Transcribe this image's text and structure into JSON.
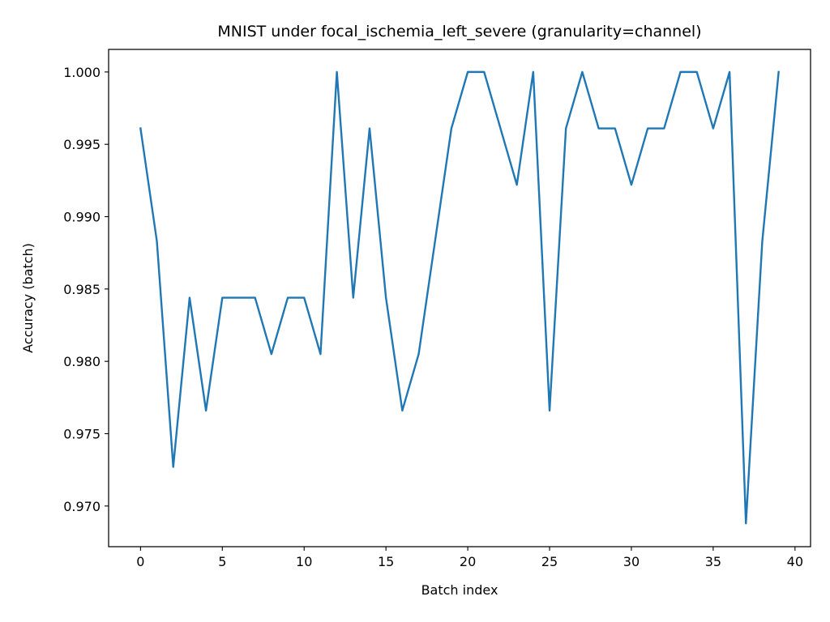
{
  "chart_data": {
    "type": "line",
    "title": "MNIST under focal_ischemia_left_severe (granularity=channel)",
    "xlabel": "Batch index",
    "ylabel": "Accuracy (batch)",
    "xlim": [
      -1.95,
      40.95
    ],
    "ylim": [
      0.96719,
      1.00156
    ],
    "x_ticks": [
      0,
      5,
      10,
      15,
      20,
      25,
      30,
      35,
      40
    ],
    "x_tick_labels": [
      "0",
      "5",
      "10",
      "15",
      "20",
      "25",
      "30",
      "35",
      "40"
    ],
    "y_ticks": [
      0.97,
      0.975,
      0.98,
      0.985,
      0.99,
      0.995,
      1.0
    ],
    "y_tick_labels": [
      "0.970",
      "0.975",
      "0.980",
      "0.985",
      "0.990",
      "0.995",
      "1.000"
    ],
    "grid": false,
    "series": [
      {
        "color": "#1f77b4",
        "x": [
          0,
          1,
          2,
          3,
          4,
          5,
          6,
          7,
          8,
          9,
          10,
          11,
          12,
          13,
          14,
          15,
          16,
          17,
          18,
          19,
          20,
          21,
          22,
          23,
          24,
          25,
          26,
          27,
          28,
          29,
          30,
          31,
          32,
          33,
          34,
          35,
          36,
          37,
          38,
          39
        ],
        "values": [
          0.9961,
          0.9883,
          0.9727,
          0.9844,
          0.9766,
          0.9844,
          0.9844,
          0.9844,
          0.9805,
          0.9844,
          0.9844,
          0.9805,
          1.0,
          0.9844,
          0.9961,
          0.9844,
          0.9766,
          0.9805,
          0.9883,
          0.9961,
          1.0,
          1.0,
          0.9961,
          0.9922,
          1.0,
          0.9766,
          0.9961,
          1.0,
          0.9961,
          0.9961,
          0.9922,
          0.9961,
          0.9961,
          1.0,
          1.0,
          0.9961,
          1.0,
          0.9688,
          0.9883,
          1.0
        ]
      }
    ]
  }
}
